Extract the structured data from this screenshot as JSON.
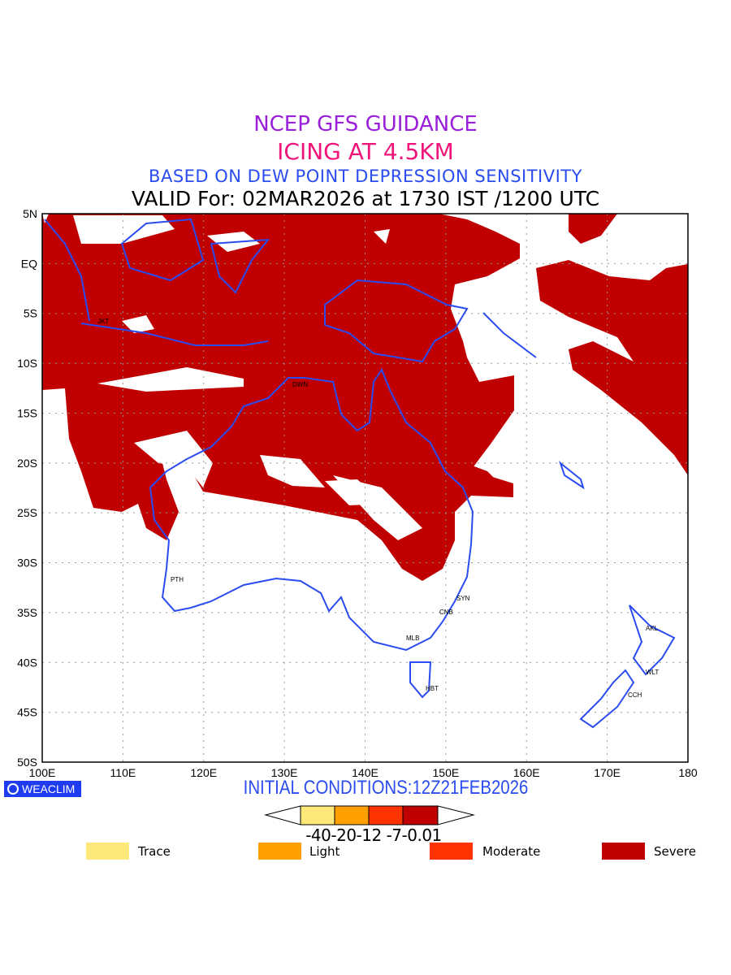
{
  "titles": {
    "line1": "NCEP GFS GUIDANCE",
    "line2": "ICING AT 4.5KM",
    "line3": "BASED ON DEW POINT DEPRESSION SENSITIVITY",
    "line4": "VALID For: 02MAR2026 at 1730 IST /1200 UTC"
  },
  "axes": {
    "lat_labels": [
      "5N",
      "EQ",
      "5S",
      "10S",
      "15S",
      "20S",
      "25S",
      "30S",
      "35S",
      "40S",
      "45S",
      "50S"
    ],
    "lon_labels": [
      "100E",
      "110E",
      "120E",
      "130E",
      "140E",
      "150E",
      "160E",
      "170E",
      "180"
    ]
  },
  "cities": [
    {
      "name": "JKT"
    },
    {
      "name": "DWN"
    },
    {
      "name": "PTH"
    },
    {
      "name": "SYN"
    },
    {
      "name": "CNB"
    },
    {
      "name": "MLB"
    },
    {
      "name": "HBT"
    },
    {
      "name": "AKL"
    },
    {
      "name": "WLT"
    },
    {
      "name": "CCH"
    }
  ],
  "brand": "WEACLIM",
  "initial_conditions": "INITIAL CONDITIONS:12Z21FEB2026",
  "colorbar": {
    "ticks": "-40-20-12 -7-0.01",
    "colors": [
      "#ffe87a",
      "#ffa000",
      "#ff3200",
      "#c00000"
    ]
  },
  "legend": [
    {
      "label": "Trace",
      "color": "#ffe87a"
    },
    {
      "label": "Light",
      "color": "#ffa000"
    },
    {
      "label": "Moderate",
      "color": "#ff3200"
    },
    {
      "label": "Severe",
      "color": "#c00000"
    }
  ],
  "colors": {
    "severe": "#c00000",
    "coast": "#2a4cf0"
  }
}
